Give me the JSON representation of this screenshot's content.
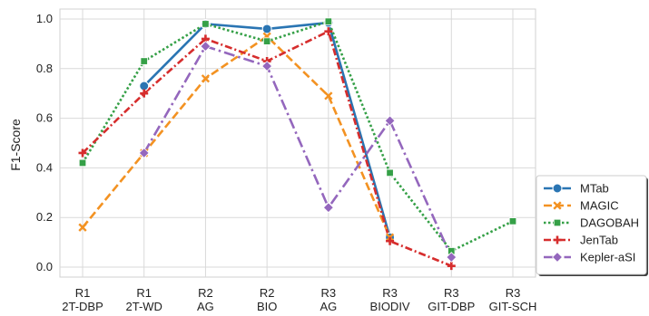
{
  "chart_data": {
    "type": "line",
    "title": "",
    "xlabel": "",
    "ylabel": "F1-Score",
    "ylim": [
      -0.04,
      1.04
    ],
    "yticks": [
      0.0,
      0.2,
      0.4,
      0.6,
      0.8,
      1.0
    ],
    "grid": true,
    "legend_position": "bottom-right outside",
    "categories": [
      [
        "R1",
        "2T-DBP"
      ],
      [
        "R1",
        "2T-WD"
      ],
      [
        "R2",
        "AG"
      ],
      [
        "R2",
        "BIO"
      ],
      [
        "R3",
        "AG"
      ],
      [
        "R3",
        "BIODIV"
      ],
      [
        "R3",
        "GIT-DBP"
      ],
      [
        "R3",
        "GIT-SCH"
      ]
    ],
    "series": [
      {
        "name": "MTab",
        "color": "#2a75b3",
        "dash": "solid",
        "marker": "circle",
        "values": [
          null,
          0.73,
          0.98,
          0.96,
          0.985,
          0.12,
          null,
          null
        ]
      },
      {
        "name": "MAGIC",
        "color": "#f39222",
        "dash": "dashed",
        "marker": "x",
        "values": [
          0.16,
          0.46,
          0.76,
          0.93,
          0.69,
          0.12,
          null,
          null
        ]
      },
      {
        "name": "DAGOBAH",
        "color": "#35a047",
        "dash": "dotted",
        "marker": "square",
        "values": [
          0.42,
          0.83,
          0.98,
          0.91,
          0.99,
          0.38,
          0.065,
          0.185
        ]
      },
      {
        "name": "JenTab",
        "color": "#d62d2d",
        "dash": "dashdot",
        "marker": "plus",
        "values": [
          0.46,
          0.7,
          0.92,
          0.83,
          0.95,
          0.105,
          0.005,
          null
        ]
      },
      {
        "name": "Kepler-aSI",
        "color": "#9467bd",
        "dash": "dashdotlong",
        "marker": "diamond",
        "values": [
          null,
          0.46,
          0.89,
          0.81,
          0.24,
          0.59,
          0.04,
          null
        ]
      }
    ]
  }
}
